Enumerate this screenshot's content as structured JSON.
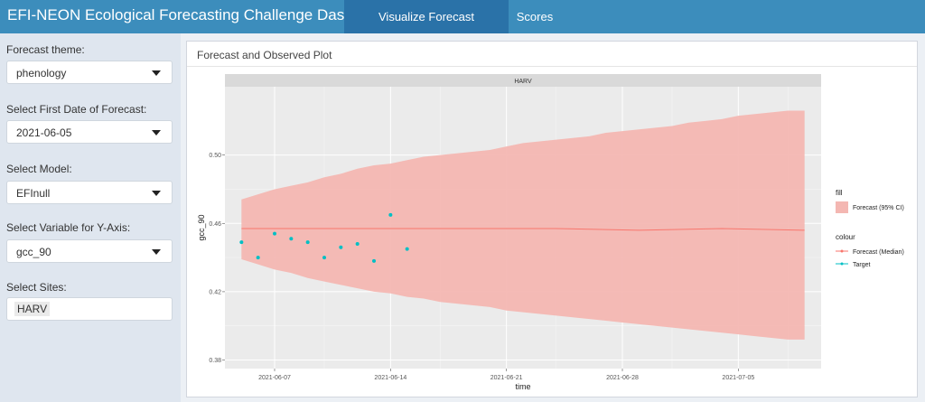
{
  "header": {
    "title": "EFI-NEON Ecological Forecasting Challenge Dashboard",
    "tabs": [
      {
        "label": "Visualize Forecast Submissions",
        "active": true
      },
      {
        "label": "Scores",
        "active": false
      }
    ]
  },
  "sidebar": {
    "theme": {
      "label": "Forecast theme:",
      "value": "phenology"
    },
    "first_date": {
      "label": "Select First Date of Forecast:",
      "value": "2021-06-05"
    },
    "model": {
      "label": "Select Model:",
      "value": "EFInull"
    },
    "variable": {
      "label": "Select Variable for Y-Axis:",
      "value": "gcc_90"
    },
    "sites": {
      "label": "Select Sites:",
      "value": "HARV"
    }
  },
  "panel": {
    "title": "Forecast and Observed Plot"
  },
  "colors": {
    "accent": "#3c8dbc",
    "ribbon": "#f4b7b2",
    "median_line": "#f8766d",
    "target_points": "#00bfc4"
  },
  "chart_data": {
    "type": "line",
    "facet": "HARV",
    "xlabel": "time",
    "ylabel": "gcc_90",
    "x_ticks": [
      "2021-06-07",
      "2021-06-14",
      "2021-06-21",
      "2021-06-28",
      "2021-07-05"
    ],
    "y_ticks": [
      0.38,
      0.42,
      0.46,
      0.5
    ],
    "ylim": [
      0.375,
      0.54
    ],
    "xlim": [
      "2021-06-04",
      "2021-07-10"
    ],
    "forecast_ci": {
      "dates": [
        "2021-06-05",
        "2021-06-06",
        "2021-06-07",
        "2021-06-08",
        "2021-06-09",
        "2021-06-10",
        "2021-06-11",
        "2021-06-12",
        "2021-06-13",
        "2021-06-14",
        "2021-06-15",
        "2021-06-16",
        "2021-06-17",
        "2021-06-18",
        "2021-06-19",
        "2021-06-20",
        "2021-06-21",
        "2021-06-22",
        "2021-06-23",
        "2021-06-24",
        "2021-06-25",
        "2021-06-26",
        "2021-06-27",
        "2021-06-28",
        "2021-06-29",
        "2021-06-30",
        "2021-07-01",
        "2021-07-02",
        "2021-07-03",
        "2021-07-04",
        "2021-07-05",
        "2021-07-06",
        "2021-07-07",
        "2021-07-08",
        "2021-07-09"
      ],
      "upper": [
        0.474,
        0.477,
        0.48,
        0.482,
        0.484,
        0.487,
        0.489,
        0.492,
        0.494,
        0.495,
        0.497,
        0.499,
        0.5,
        0.501,
        0.502,
        0.503,
        0.505,
        0.507,
        0.508,
        0.509,
        0.51,
        0.511,
        0.513,
        0.514,
        0.515,
        0.516,
        0.517,
        0.519,
        0.52,
        0.521,
        0.523,
        0.524,
        0.525,
        0.526,
        0.526
      ],
      "lower": [
        0.439,
        0.436,
        0.433,
        0.431,
        0.428,
        0.426,
        0.424,
        0.422,
        0.42,
        0.419,
        0.417,
        0.416,
        0.414,
        0.413,
        0.412,
        0.411,
        0.409,
        0.408,
        0.407,
        0.406,
        0.405,
        0.404,
        0.403,
        0.402,
        0.401,
        0.4,
        0.399,
        0.398,
        0.397,
        0.396,
        0.395,
        0.394,
        0.393,
        0.392,
        0.392
      ]
    },
    "series": [
      {
        "name": "Forecast (Median)",
        "dates": [
          "2021-06-05",
          "2021-06-09",
          "2021-06-14",
          "2021-06-19",
          "2021-06-24",
          "2021-06-29",
          "2021-07-04",
          "2021-07-09"
        ],
        "values": [
          0.457,
          0.457,
          0.457,
          0.457,
          0.457,
          0.456,
          0.457,
          0.456
        ]
      },
      {
        "name": "Target",
        "dates": [
          "2021-06-05",
          "2021-06-06",
          "2021-06-07",
          "2021-06-08",
          "2021-06-09",
          "2021-06-10",
          "2021-06-11",
          "2021-06-12",
          "2021-06-13",
          "2021-06-14",
          "2021-06-15"
        ],
        "values": [
          0.449,
          0.44,
          0.454,
          0.451,
          0.449,
          0.44,
          0.446,
          0.448,
          0.438,
          0.465,
          0.445
        ]
      }
    ],
    "legend": {
      "placement": "right",
      "fill_title": "fill",
      "fill_entry": "Forecast (95% CI)",
      "colour_title": "colour",
      "colour_entries": [
        "Forecast (Median)",
        "Target"
      ]
    }
  }
}
